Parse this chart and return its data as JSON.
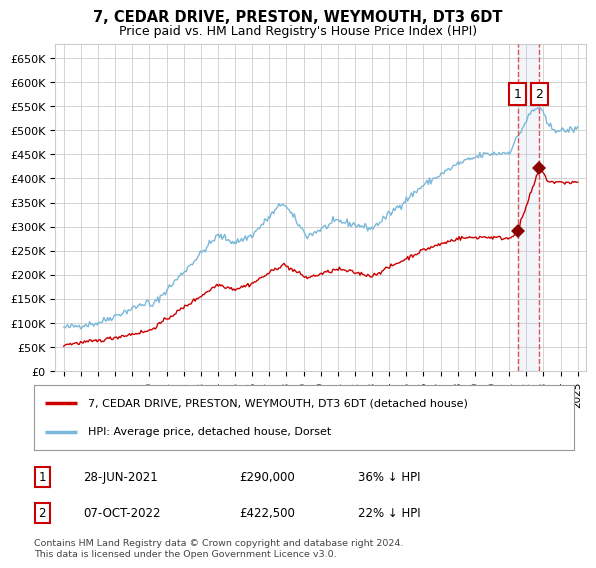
{
  "title": "7, CEDAR DRIVE, PRESTON, WEYMOUTH, DT3 6DT",
  "subtitle": "Price paid vs. HM Land Registry's House Price Index (HPI)",
  "legend_line1": "7, CEDAR DRIVE, PRESTON, WEYMOUTH, DT3 6DT (detached house)",
  "legend_line2": "HPI: Average price, detached house, Dorset",
  "footnote": "Contains HM Land Registry data © Crown copyright and database right 2024.\nThis data is licensed under the Open Government Licence v3.0.",
  "transactions": [
    {
      "date": "28-JUN-2021",
      "price": 290000,
      "label": "1",
      "pct": "36% ↓ HPI"
    },
    {
      "date": "07-OCT-2022",
      "price": 422500,
      "label": "2",
      "pct": "22% ↓ HPI"
    }
  ],
  "transaction_dates_num": [
    2021.49,
    2022.77
  ],
  "transaction_prices": [
    290000,
    422500
  ],
  "hpi_color": "#7ab8d9",
  "price_color": "#cc0000",
  "marker_color": "#8b0000",
  "dashed_line_color": "#e05050",
  "shade_color": "#ddeeff",
  "background_color": "#ffffff",
  "grid_color": "#cccccc",
  "ylim": [
    0,
    680000
  ],
  "yticks": [
    0,
    50000,
    100000,
    150000,
    200000,
    250000,
    300000,
    350000,
    400000,
    450000,
    500000,
    550000,
    600000,
    650000
  ],
  "xlim_start": 1994.5,
  "xlim_end": 2025.5,
  "xticks": [
    1995,
    1996,
    1997,
    1998,
    1999,
    2000,
    2001,
    2002,
    2003,
    2004,
    2005,
    2006,
    2007,
    2008,
    2009,
    2010,
    2011,
    2012,
    2013,
    2014,
    2015,
    2016,
    2017,
    2018,
    2019,
    2020,
    2021,
    2022,
    2023,
    2024,
    2025
  ]
}
